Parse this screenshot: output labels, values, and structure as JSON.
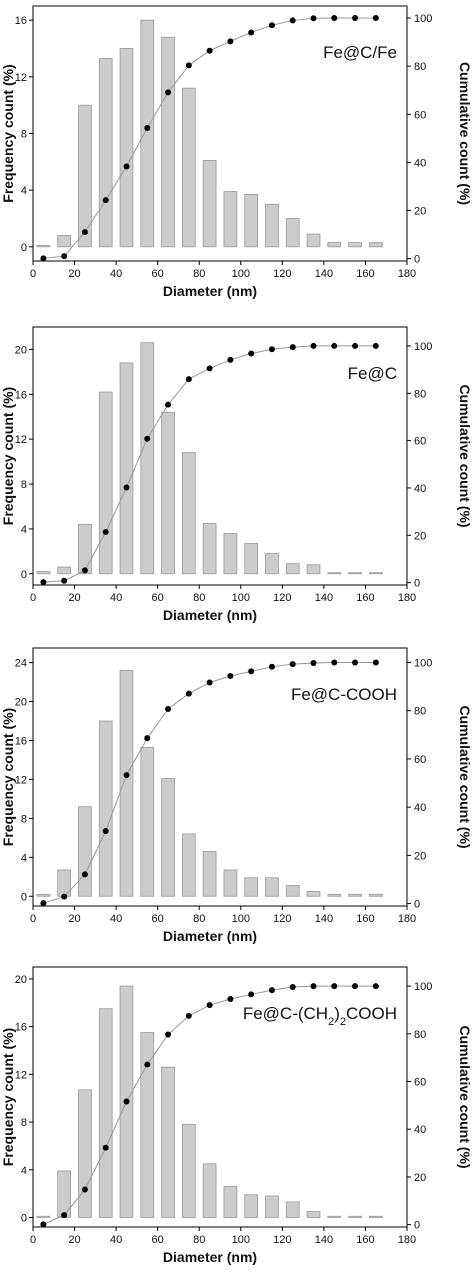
{
  "chart_data": [
    {
      "type": "bar",
      "annotation": "Fe@C/Fe",
      "xlabel": "Diameter (nm)",
      "ylabel": "Frequency count (%)",
      "y2label": "Cumulative count (%)",
      "xlim": [
        0,
        180
      ],
      "xticks": [
        0,
        20,
        40,
        60,
        80,
        100,
        120,
        140,
        160,
        180
      ],
      "ylim": [
        -1,
        17
      ],
      "yticks": [
        0,
        4,
        8,
        12,
        16
      ],
      "y2lim": [
        -1,
        105
      ],
      "y2ticks": [
        0,
        20,
        40,
        60,
        80,
        100
      ],
      "x": [
        5,
        15,
        25,
        35,
        45,
        55,
        65,
        75,
        85,
        95,
        105,
        115,
        125,
        135,
        145,
        155,
        165
      ],
      "values": [
        0.1,
        0.8,
        10.0,
        13.3,
        14.0,
        16.0,
        14.8,
        11.2,
        6.1,
        3.9,
        3.7,
        3.0,
        2.0,
        0.9,
        0.3,
        0.3,
        0.3
      ],
      "cumulative": [
        0.1,
        1.0,
        11.0,
        24.3,
        38.3,
        54.3,
        69.1,
        80.3,
        86.4,
        90.3,
        94.0,
        97.0,
        99.0,
        99.9,
        100,
        100,
        100
      ],
      "bar_color": "#cccccc",
      "bar_edge": "#999999"
    },
    {
      "type": "bar",
      "annotation": "Fe@C",
      "xlabel": "Diameter (nm)",
      "ylabel": "Frequency count (%)",
      "y2label": "Cumulative count (%)",
      "xlim": [
        0,
        180
      ],
      "xticks": [
        0,
        20,
        40,
        60,
        80,
        100,
        120,
        140,
        160,
        180
      ],
      "ylim": [
        -1,
        22
      ],
      "yticks": [
        0,
        4,
        8,
        12,
        16,
        20
      ],
      "y2lim": [
        -1,
        108
      ],
      "y2ticks": [
        0,
        20,
        40,
        60,
        80,
        100
      ],
      "x": [
        5,
        15,
        25,
        35,
        45,
        55,
        65,
        75,
        85,
        95,
        105,
        115,
        125,
        135,
        145,
        155,
        165
      ],
      "values": [
        0.2,
        0.6,
        4.4,
        16.2,
        18.8,
        20.6,
        14.4,
        10.8,
        4.5,
        3.6,
        2.7,
        1.8,
        0.9,
        0.8,
        0.1,
        0.1,
        0.1
      ],
      "cumulative": [
        0.2,
        0.8,
        5.2,
        21.4,
        40.2,
        60.8,
        75.2,
        86.0,
        90.5,
        94.1,
        96.8,
        98.6,
        99.5,
        100,
        100,
        100,
        100
      ],
      "bar_color": "#cccccc",
      "bar_edge": "#999999"
    },
    {
      "type": "bar",
      "annotation": "Fe@C-COOH",
      "xlabel": "Diameter (nm)",
      "ylabel": "Frequency count (%)",
      "y2label": "Cumulative count (%)",
      "xlim": [
        0,
        180
      ],
      "xticks": [
        0,
        20,
        40,
        60,
        80,
        100,
        120,
        140,
        160,
        180
      ],
      "ylim": [
        -1,
        25.5
      ],
      "yticks": [
        0,
        4,
        8,
        12,
        16,
        20,
        24
      ],
      "y2lim": [
        -1,
        106
      ],
      "y2ticks": [
        0,
        20,
        40,
        60,
        80,
        100
      ],
      "x": [
        5,
        15,
        25,
        35,
        45,
        55,
        65,
        75,
        85,
        95,
        105,
        115,
        125,
        135,
        145,
        155,
        165
      ],
      "values": [
        0.2,
        2.7,
        9.2,
        18.0,
        23.2,
        15.3,
        12.1,
        6.4,
        4.6,
        2.7,
        1.9,
        1.9,
        1.1,
        0.5,
        0.2,
        0.2,
        0.2
      ],
      "cumulative": [
        0.2,
        2.9,
        12.1,
        30.1,
        53.3,
        68.6,
        80.7,
        87.1,
        91.7,
        94.4,
        96.3,
        98.2,
        99.3,
        99.8,
        100,
        100,
        100
      ],
      "bar_color": "#cccccc",
      "bar_edge": "#999999"
    },
    {
      "type": "bar",
      "annotation_main": "Fe@C-(CH",
      "annotation_sub": "2",
      "annotation_tail": ")",
      "annotation_sub2": "2",
      "annotation_end": "COOH",
      "xlabel": "Diameter (nm)",
      "ylabel": "Frequency count (%)",
      "y2label": "Cumulative count (%)",
      "xlim": [
        0,
        180
      ],
      "xticks": [
        0,
        20,
        40,
        60,
        80,
        100,
        120,
        140,
        160,
        180
      ],
      "ylim": [
        -0.8,
        21
      ],
      "yticks": [
        0,
        4,
        8,
        12,
        16,
        20
      ],
      "y2lim": [
        -1,
        108
      ],
      "y2ticks": [
        0,
        20,
        40,
        60,
        80,
        100
      ],
      "x": [
        5,
        15,
        25,
        35,
        45,
        55,
        65,
        75,
        85,
        95,
        105,
        115,
        125,
        135,
        145,
        155,
        165
      ],
      "values": [
        0.1,
        3.9,
        10.7,
        17.5,
        19.4,
        15.5,
        12.6,
        7.8,
        4.5,
        2.6,
        1.9,
        1.8,
        1.3,
        0.5,
        0.1,
        0.1,
        0.1
      ],
      "cumulative": [
        0.1,
        4.0,
        14.7,
        32.2,
        51.6,
        67.1,
        79.7,
        87.5,
        92.0,
        94.6,
        96.5,
        98.3,
        99.6,
        100,
        100,
        100,
        100
      ],
      "bar_color": "#cccccc",
      "bar_edge": "#999999"
    }
  ]
}
